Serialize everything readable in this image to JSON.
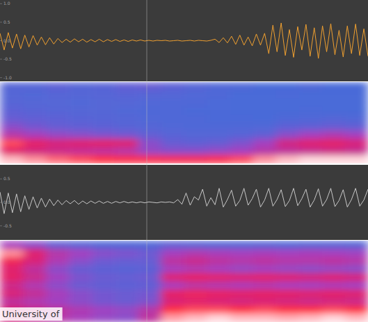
{
  "chart_data": [
    {
      "type": "line",
      "color": "#f0a030",
      "tick_labels": "y",
      "xlim": [
        0,
        89
      ],
      "ylim": [
        -1.1,
        1.1
      ],
      "yticks": [
        {
          "value": 1,
          "label": "1.0"
        },
        {
          "value": 0.5,
          "label": "0.5"
        },
        {
          "value": 0,
          "label": "0.0"
        },
        {
          "value": -0.5,
          "label": "-0.5"
        },
        {
          "value": -1,
          "label": "-1.0"
        }
      ],
      "x": [
        0,
        1,
        2,
        3,
        4,
        5,
        6,
        7,
        8,
        9,
        10,
        11,
        12,
        13,
        14,
        15,
        16,
        17,
        18,
        19,
        20,
        21,
        22,
        23,
        24,
        25,
        26,
        27,
        28,
        29,
        30,
        31,
        32,
        33,
        34,
        35,
        36,
        37,
        38,
        39,
        40,
        41,
        42,
        43,
        44,
        45,
        46,
        47,
        48,
        49,
        50,
        51,
        52,
        53,
        54,
        55,
        56,
        57,
        58,
        59,
        60,
        61,
        62,
        63,
        64,
        65,
        66,
        67,
        68,
        69,
        70,
        71,
        72,
        73,
        74,
        75,
        76,
        77,
        78,
        79,
        80,
        81,
        82,
        83,
        84,
        85,
        86,
        87,
        88,
        89
      ],
      "values": [
        0.2,
        -0.25,
        0.22,
        -0.2,
        0.18,
        -0.22,
        0.15,
        -0.17,
        0.14,
        -0.12,
        0.1,
        -0.11,
        0.08,
        -0.09,
        0.06,
        -0.05,
        0.04,
        -0.04,
        0.05,
        -0.03,
        0.04,
        -0.04,
        0.03,
        -0.03,
        0.04,
        -0.03,
        0.03,
        -0.02,
        0.03,
        -0.02,
        0.02,
        -0.02,
        0.02,
        -0.01,
        0.02,
        -0.01,
        0.01,
        -0.01,
        0.01,
        0,
        0.01,
        -0.01,
        0,
        0.01,
        -0.01,
        0,
        0.01,
        -0.01,
        0.01,
        0,
        -0.01,
        0.01,
        0.04,
        -0.05,
        0.08,
        -0.06,
        0.12,
        -0.1,
        0.15,
        -0.12,
        0.1,
        -0.14,
        0.18,
        -0.12,
        0.2,
        -0.35,
        0.42,
        -0.3,
        0.48,
        -0.4,
        0.3,
        -0.45,
        0.38,
        -0.25,
        0.44,
        -0.42,
        0.35,
        -0.48,
        0.4,
        -0.3,
        0.46,
        -0.38,
        0.28,
        -0.44,
        0.4,
        -0.35,
        0.45,
        -0.4,
        0.32,
        -0.42
      ]
    },
    {
      "type": "heatmap",
      "tick_labels": false,
      "color_range": [
        0,
        1
      ],
      "cells": [
        [
          0.35,
          0.35,
          0.38,
          0.35,
          0.36,
          0.4,
          0.42,
          0.38,
          0.35,
          0.33,
          0.32,
          0.3,
          0.3,
          0.32,
          0.3,
          0.3
        ],
        [
          0.34,
          0.33,
          0.35,
          0.34,
          0.35,
          0.36,
          0.35,
          0.34,
          0.33,
          0.32,
          0.3,
          0.3,
          0.31,
          0.3,
          0.3,
          0.3
        ],
        [
          0.35,
          0.34,
          0.34,
          0.33,
          0.34,
          0.34,
          0.33,
          0.32,
          0.32,
          0.31,
          0.3,
          0.3,
          0.3,
          0.3,
          0.3,
          0.3
        ],
        [
          0.38,
          0.36,
          0.35,
          0.34,
          0.34,
          0.33,
          0.32,
          0.32,
          0.31,
          0.31,
          0.3,
          0.3,
          0.3,
          0.31,
          0.3,
          0.3
        ],
        [
          0.42,
          0.4,
          0.38,
          0.36,
          0.35,
          0.34,
          0.33,
          0.32,
          0.32,
          0.31,
          0.31,
          0.3,
          0.32,
          0.33,
          0.34,
          0.33
        ],
        [
          0.5,
          0.46,
          0.42,
          0.4,
          0.38,
          0.36,
          0.34,
          0.33,
          0.32,
          0.32,
          0.32,
          0.33,
          0.38,
          0.4,
          0.42,
          0.4
        ],
        [
          0.6,
          0.56,
          0.52,
          0.5,
          0.48,
          0.46,
          0.4,
          0.36,
          0.34,
          0.34,
          0.36,
          0.4,
          0.5,
          0.55,
          0.58,
          0.55
        ],
        [
          0.9,
          0.75,
          0.7,
          0.72,
          0.74,
          0.72,
          0.5,
          0.42,
          0.4,
          0.42,
          0.48,
          0.55,
          0.68,
          0.72,
          0.74,
          0.7
        ],
        [
          0.72,
          0.68,
          0.66,
          0.64,
          0.62,
          0.6,
          0.52,
          0.5,
          0.5,
          0.52,
          0.55,
          0.6,
          0.62,
          0.64,
          0.66,
          0.64
        ],
        [
          0.98,
          0.95,
          0.92,
          0.9,
          0.88,
          0.86,
          0.85,
          0.84,
          0.84,
          0.86,
          0.9,
          0.95,
          0.98,
          1,
          1,
          1
        ]
      ]
    },
    {
      "type": "line",
      "color": "#c8c8c8",
      "tick_labels": "y",
      "xlim": [
        0,
        89
      ],
      "ylim": [
        -0.8,
        0.8
      ],
      "yticks": [
        {
          "value": 0.5,
          "label": "0.5"
        },
        {
          "value": 0,
          "label": "0.0"
        },
        {
          "value": -0.5,
          "label": "-0.5"
        }
      ],
      "x": [
        0,
        1,
        2,
        3,
        4,
        5,
        6,
        7,
        8,
        9,
        10,
        11,
        12,
        13,
        14,
        15,
        16,
        17,
        18,
        19,
        20,
        21,
        22,
        23,
        24,
        25,
        26,
        27,
        28,
        29,
        30,
        31,
        32,
        33,
        34,
        35,
        36,
        37,
        38,
        39,
        40,
        41,
        42,
        43,
        44,
        45,
        46,
        47,
        48,
        49,
        50,
        51,
        52,
        53,
        54,
        55,
        56,
        57,
        58,
        59,
        60,
        61,
        62,
        63,
        64,
        65,
        66,
        67,
        68,
        69,
        70,
        71,
        72,
        73,
        74,
        75,
        76,
        77,
        78,
        79,
        80,
        81,
        82,
        83,
        84,
        85,
        86,
        87,
        88,
        89
      ],
      "values": [
        0.22,
        -0.24,
        0.2,
        -0.22,
        0.18,
        -0.2,
        0.14,
        -0.15,
        0.12,
        -0.12,
        0.09,
        -0.1,
        0.07,
        -0.07,
        0.05,
        -0.05,
        0.04,
        -0.03,
        0.04,
        -0.04,
        0.03,
        -0.03,
        0.03,
        -0.02,
        0.03,
        -0.02,
        0.02,
        -0.02,
        0.02,
        -0.01,
        0.02,
        -0.01,
        0.01,
        -0.01,
        0.01,
        -0.01,
        0.01,
        0,
        -0.01,
        0.01,
        0,
        0.01,
        -0.01,
        0.06,
        -0.04,
        0.2,
        -0.06,
        0.12,
        0.05,
        0.28,
        -0.08,
        0.1,
        -0.05,
        0.3,
        -0.1,
        0.06,
        0.26,
        -0.08,
        0.04,
        0.3,
        -0.06,
        0.08,
        0.28,
        -0.1,
        0.05,
        0.3,
        -0.08,
        0.06,
        0.27,
        -0.09,
        0.04,
        0.3,
        -0.07,
        0.08,
        0.28,
        -0.1,
        0.05,
        0.29,
        -0.08,
        0.06,
        0.3,
        -0.09,
        0.04,
        0.27,
        -0.1,
        0.06,
        0.3,
        -0.08,
        0.05,
        0.28
      ]
    },
    {
      "type": "heatmap",
      "tick_labels": false,
      "color_range": [
        0,
        1
      ],
      "cells": [
        [
          0.55,
          0.5,
          0.4,
          0.35,
          0.32,
          0.32,
          0.33,
          0.38,
          0.36,
          0.34,
          0.34,
          0.35,
          0.33,
          0.34,
          0.35,
          0.34
        ],
        [
          0.95,
          0.72,
          0.6,
          0.55,
          0.5,
          0.48,
          0.45,
          0.55,
          0.58,
          0.56,
          0.55,
          0.56,
          0.55,
          0.56,
          0.55,
          0.54
        ],
        [
          0.8,
          0.7,
          0.58,
          0.5,
          0.45,
          0.42,
          0.42,
          0.62,
          0.66,
          0.62,
          0.6,
          0.62,
          0.6,
          0.6,
          0.62,
          0.6
        ],
        [
          0.72,
          0.62,
          0.5,
          0.42,
          0.38,
          0.36,
          0.38,
          0.55,
          0.58,
          0.55,
          0.52,
          0.54,
          0.52,
          0.5,
          0.52,
          0.5
        ],
        [
          0.74,
          0.66,
          0.55,
          0.48,
          0.44,
          0.42,
          0.45,
          0.72,
          0.76,
          0.74,
          0.72,
          0.74,
          0.72,
          0.7,
          0.72,
          0.7
        ],
        [
          0.66,
          0.58,
          0.5,
          0.44,
          0.4,
          0.38,
          0.4,
          0.55,
          0.6,
          0.58,
          0.56,
          0.58,
          0.55,
          0.54,
          0.56,
          0.54
        ],
        [
          0.7,
          0.64,
          0.56,
          0.5,
          0.46,
          0.44,
          0.46,
          0.75,
          0.78,
          0.76,
          0.74,
          0.75,
          0.74,
          0.72,
          0.74,
          0.72
        ],
        [
          0.62,
          0.58,
          0.54,
          0.5,
          0.46,
          0.44,
          0.48,
          0.7,
          0.72,
          0.7,
          0.68,
          0.7,
          0.68,
          0.66,
          0.68,
          0.66
        ],
        [
          0.7,
          0.66,
          0.62,
          0.58,
          0.54,
          0.52,
          0.6,
          0.88,
          0.9,
          0.9,
          0.88,
          0.9,
          0.88,
          0.88,
          0.9,
          0.88
        ],
        [
          0.68,
          0.64,
          0.6,
          0.56,
          0.52,
          0.5,
          0.62,
          0.96,
          0.98,
          1,
          0.98,
          0.98,
          0.97,
          0.98,
          1,
          0.98
        ]
      ]
    }
  ],
  "overlay_text": "University of"
}
